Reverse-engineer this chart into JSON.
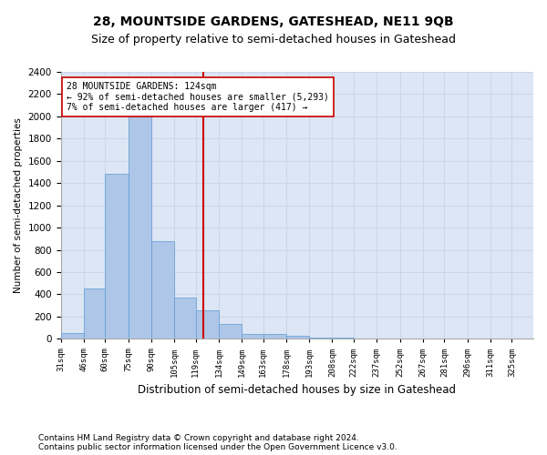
{
  "title": "28, MOUNTSIDE GARDENS, GATESHEAD, NE11 9QB",
  "subtitle": "Size of property relative to semi-detached houses in Gateshead",
  "xlabel": "Distribution of semi-detached houses by size in Gateshead",
  "ylabel": "Number of semi-detached properties",
  "footnote1": "Contains HM Land Registry data © Crown copyright and database right 2024.",
  "footnote2": "Contains public sector information licensed under the Open Government Licence v3.0.",
  "bin_labels": [
    "31sqm",
    "46sqm",
    "60sqm",
    "75sqm",
    "90sqm",
    "105sqm",
    "119sqm",
    "134sqm",
    "149sqm",
    "163sqm",
    "178sqm",
    "193sqm",
    "208sqm",
    "222sqm",
    "237sqm",
    "252sqm",
    "267sqm",
    "281sqm",
    "296sqm",
    "311sqm",
    "325sqm"
  ],
  "bin_edges": [
    31,
    46,
    60,
    75,
    90,
    105,
    119,
    134,
    149,
    163,
    178,
    193,
    208,
    222,
    237,
    252,
    267,
    281,
    296,
    311,
    325
  ],
  "bar_heights": [
    50,
    450,
    1480,
    2000,
    880,
    375,
    255,
    130,
    40,
    40,
    25,
    15,
    10,
    5,
    5,
    2,
    2,
    1,
    1,
    0
  ],
  "bar_color": "#aec6e8",
  "bar_edgecolor": "#5b9bd5",
  "property_size": 124,
  "property_line_color": "#cc0000",
  "annotation_line1": "28 MOUNTSIDE GARDENS: 124sqm",
  "annotation_line2": "← 92% of semi-detached houses are smaller (5,293)",
  "annotation_line3": "7% of semi-detached houses are larger (417) →",
  "annotation_box_color": "#ffffff",
  "annotation_box_edgecolor": "#cc0000",
  "ylim": [
    0,
    2400
  ],
  "yticks": [
    0,
    200,
    400,
    600,
    800,
    1000,
    1200,
    1400,
    1600,
    1800,
    2000,
    2200,
    2400
  ],
  "grid_color": "#ccd6e8",
  "background_color": "#dce6f5",
  "title_fontsize": 10,
  "subtitle_fontsize": 9,
  "footnote_fontsize": 6.5
}
